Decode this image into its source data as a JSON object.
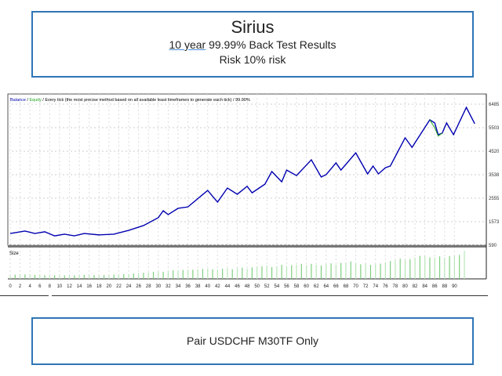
{
  "header": {
    "title": "Sirius",
    "period": "10 year",
    "subtitle_rest": " 99.99% Back Test Results",
    "risk": "Risk 10% risk"
  },
  "footer": {
    "text": "Pair USDCHF M30TF Only"
  },
  "chart_data": {
    "type": "line",
    "legend": {
      "balance": "Balance",
      "equity": "Equity",
      "sep1": " / ",
      "sep2": " / ",
      "rest": "Every tick (the most precise method based on all available least timeframes to generate each tick) / 99.90%"
    },
    "colors": {
      "balance": "#0000b0",
      "equity": "#22aa22",
      "size": "#8fd68f"
    },
    "ylim": [
      590,
      6485
    ],
    "yticks": [
      "6485",
      "5503",
      "4520",
      "3538",
      "2555",
      "1573",
      "590"
    ],
    "xlim": [
      0,
      95
    ],
    "xticks": [
      "0",
      "2",
      "4",
      "6",
      "8",
      "10",
      "12",
      "14",
      "16",
      "18",
      "20",
      "22",
      "24",
      "26",
      "28",
      "30",
      "32",
      "34",
      "36",
      "38",
      "40",
      "42",
      "44",
      "46",
      "48",
      "50",
      "52",
      "54",
      "56",
      "58",
      "60",
      "62",
      "64",
      "66",
      "68",
      "70",
      "72",
      "74",
      "76",
      "78",
      "80",
      "82",
      "84",
      "86",
      "88",
      "90"
    ],
    "balance": [
      [
        0,
        1080
      ],
      [
        3,
        1180
      ],
      [
        5,
        1080
      ],
      [
        7,
        1150
      ],
      [
        9,
        980
      ],
      [
        11,
        1050
      ],
      [
        13,
        980
      ],
      [
        15,
        1080
      ],
      [
        18,
        1020
      ],
      [
        21,
        1050
      ],
      [
        24,
        1210
      ],
      [
        27,
        1410
      ],
      [
        30,
        1740
      ],
      [
        31,
        2030
      ],
      [
        32,
        1870
      ],
      [
        34,
        2130
      ],
      [
        36,
        2190
      ],
      [
        40,
        2880
      ],
      [
        42,
        2390
      ],
      [
        44,
        2980
      ],
      [
        46,
        2720
      ],
      [
        48,
        3050
      ],
      [
        49,
        2780
      ],
      [
        51.6,
        3140
      ],
      [
        53,
        3670
      ],
      [
        55,
        3240
      ],
      [
        56,
        3730
      ],
      [
        58,
        3500
      ],
      [
        61,
        4160
      ],
      [
        63,
        3440
      ],
      [
        64,
        3540
      ],
      [
        66,
        4030
      ],
      [
        67,
        3730
      ],
      [
        70,
        4450
      ],
      [
        72.4,
        3570
      ],
      [
        73.5,
        3900
      ],
      [
        74.6,
        3570
      ],
      [
        76,
        3830
      ],
      [
        77,
        3900
      ],
      [
        80,
        5080
      ],
      [
        81.4,
        4680
      ],
      [
        85,
        5830
      ],
      [
        86,
        5700
      ],
      [
        86.7,
        5210
      ],
      [
        87.5,
        5270
      ],
      [
        88.4,
        5700
      ],
      [
        89.8,
        5210
      ],
      [
        92.4,
        6350
      ],
      [
        94.1,
        5670
      ]
    ],
    "equity": [
      [
        85,
        5830
      ],
      [
        86,
        5500
      ],
      [
        86.7,
        5150
      ],
      [
        87.5,
        5270
      ]
    ],
    "size_label": "Size",
    "size": [
      1.5,
      1.8,
      2,
      1.9,
      1.8,
      1.7,
      1.9,
      1.6,
      1.5,
      1.6,
      1.6,
      1.5,
      1.6,
      1.5,
      1.6,
      1.7,
      1.8,
      1.6,
      1.7,
      1.6,
      1.7,
      1.8,
      1.9,
      2,
      2.1,
      2.3,
      2.5,
      2.6,
      2.8,
      3,
      3.2,
      3,
      3.3,
      3.6,
      3.7,
      3.8,
      4,
      3.9,
      4.1,
      4.2,
      4.4,
      4,
      3.9,
      4.3,
      4.5,
      4.1,
      4.6,
      4.8,
      4.3,
      4.9,
      5.1,
      5.3,
      5.6,
      5,
      5.4,
      6,
      5.5,
      5.8,
      6.1,
      6.4,
      5.8,
      6.4,
      6,
      5.7,
      6.3,
      6.6,
      6,
      6.8,
      7,
      7.4,
      6.8,
      6.2,
      6.6,
      6,
      6.4,
      6.5,
      7,
      7.6,
      8,
      8.6,
      8,
      8.4,
      9,
      9.8,
      9.8,
      9.1,
      9,
      9.6,
      9,
      9.7,
      10,
      10.2,
      12
    ]
  }
}
